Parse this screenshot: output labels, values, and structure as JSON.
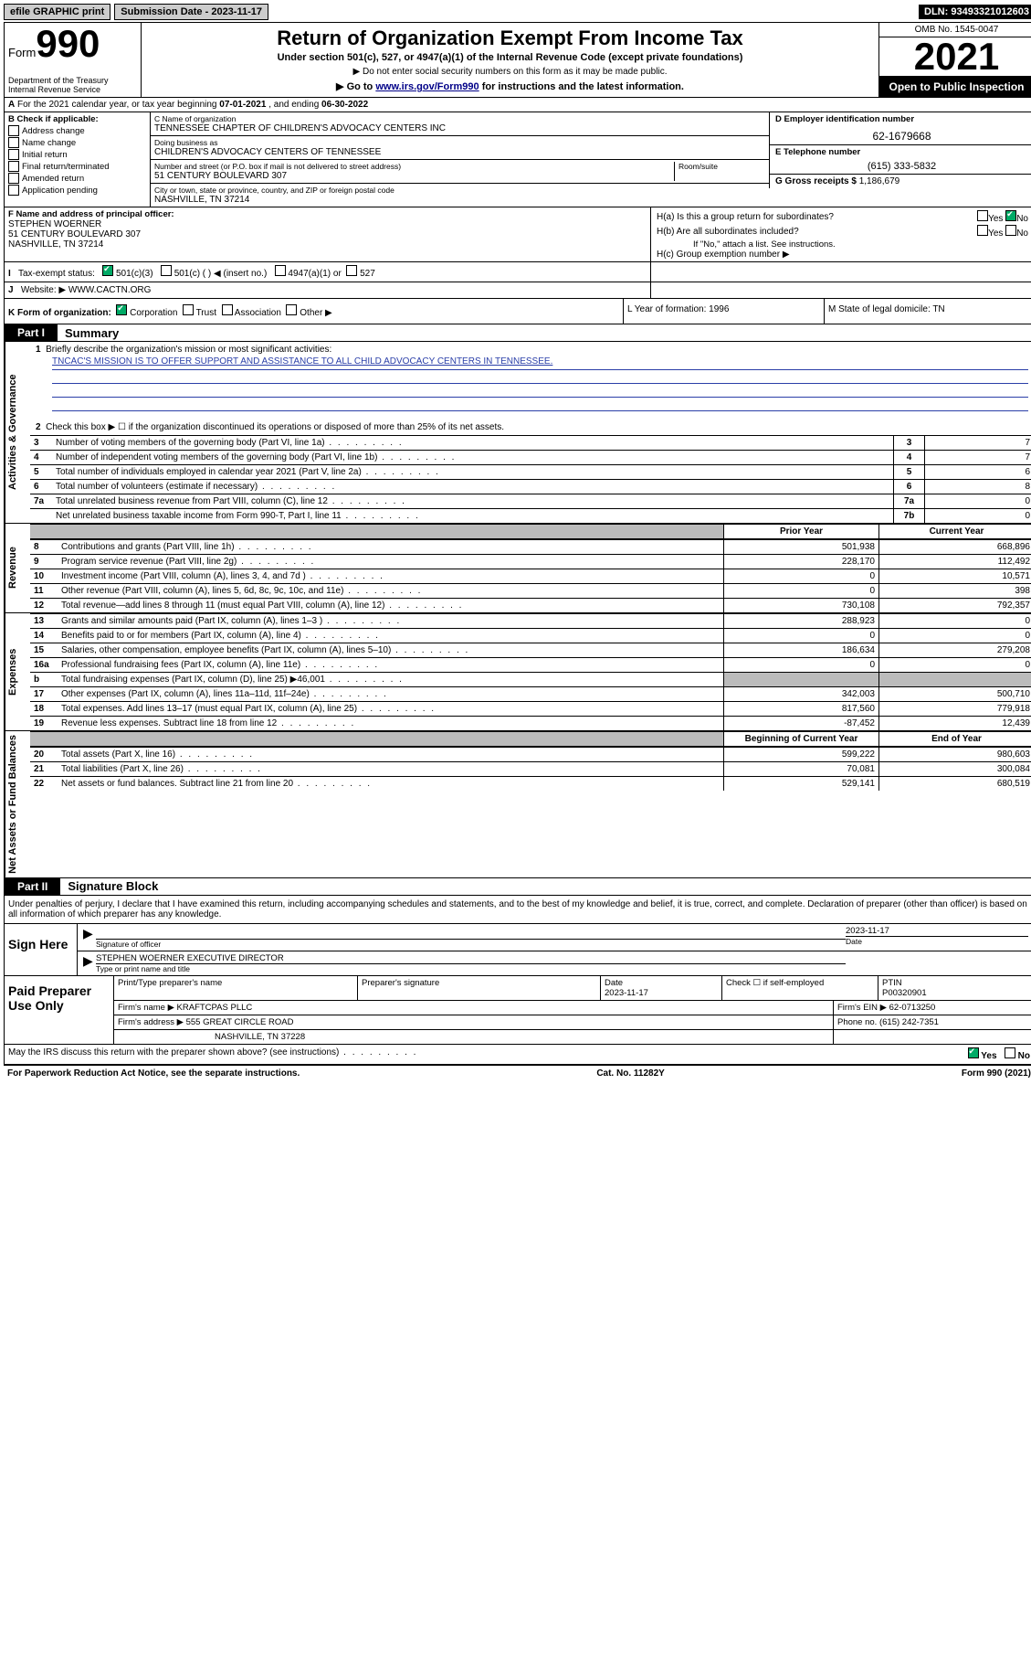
{
  "topbar": {
    "efile": "efile GRAPHIC print",
    "subdate_label": "Submission Date - ",
    "subdate": "2023-11-17",
    "dln": "DLN: 93493321012603"
  },
  "header": {
    "form_word": "Form",
    "form_num": "990",
    "title": "Return of Organization Exempt From Income Tax",
    "sub1": "Under section 501(c), 527, or 4947(a)(1) of the Internal Revenue Code (except private foundations)",
    "sub2": "Do not enter social security numbers on this form as it may be made public.",
    "sub3_pre": "Go to ",
    "sub3_link": "www.irs.gov/Form990",
    "sub3_post": " for instructions and the latest information.",
    "dept": "Department of the Treasury\nInternal Revenue Service",
    "omb": "OMB No. 1545-0047",
    "year": "2021",
    "open": "Open to Public Inspection"
  },
  "rowA": {
    "label": "A",
    "text_pre": "For the 2021 calendar year, or tax year beginning ",
    "begin": "07-01-2021",
    "mid": " , and ending ",
    "end": "06-30-2022"
  },
  "colB": {
    "header": "B Check if applicable:",
    "opts": [
      "Address change",
      "Name change",
      "Initial return",
      "Final return/terminated",
      "Amended return",
      "Application pending"
    ]
  },
  "colC": {
    "name_lab": "C Name of organization",
    "name": "TENNESSEE CHAPTER OF CHILDREN'S ADVOCACY CENTERS INC",
    "dba_lab": "Doing business as",
    "dba": "CHILDREN'S ADVOCACY CENTERS OF TENNESSEE",
    "street_lab": "Number and street (or P.O. box if mail is not delivered to street address)",
    "street": "51 CENTURY BOULEVARD 307",
    "room_lab": "Room/suite",
    "city_lab": "City or town, state or province, country, and ZIP or foreign postal code",
    "city": "NASHVILLE, TN  37214"
  },
  "colD": {
    "d_lab": "D Employer identification number",
    "ein": "62-1679668",
    "e_lab": "E Telephone number",
    "phone": "(615) 333-5832",
    "g_lab": "G Gross receipts $ ",
    "gross": "1,186,679"
  },
  "rowF": {
    "lab": "F Name and address of principal officer:",
    "name": "STEPHEN WOERNER",
    "addr1": "51 CENTURY BOULEVARD 307",
    "addr2": "NASHVILLE, TN  37214"
  },
  "rowH": {
    "ha": "H(a)  Is this a group return for subordinates?",
    "hb": "H(b)  Are all subordinates included?",
    "hb_note": "If \"No,\" attach a list. See instructions.",
    "hc": "H(c)  Group exemption number ▶",
    "yes": "Yes",
    "no": "No",
    "ha_answer": "No"
  },
  "rowI": {
    "lab": "I",
    "text": "Tax-exempt status:",
    "opt1": "501(c)(3)",
    "opt2": "501(c) (   ) ◀ (insert no.)",
    "opt3": "4947(a)(1) or",
    "opt4": "527"
  },
  "rowJ": {
    "lab": "J",
    "text": "Website: ▶ ",
    "url": "WWW.CACTN.ORG"
  },
  "rowK": {
    "text": "K Form of organization:",
    "opts": [
      "Corporation",
      "Trust",
      "Association",
      "Other ▶"
    ],
    "L": "L Year of formation: 1996",
    "M": "M State of legal domicile: TN"
  },
  "part1": {
    "tab": "Part I",
    "title": "Summary",
    "q1_lab": "1",
    "q1": "Briefly describe the organization's mission or most significant activities:",
    "mission": "TNCAC'S MISSION IS TO OFFER SUPPORT AND ASSISTANCE TO ALL CHILD ADVOCACY CENTERS IN TENNESSEE.",
    "q2_lab": "2",
    "q2": "Check this box ▶ ☐  if the organization discontinued its operations or disposed of more than 25% of its net assets.",
    "rows": [
      {
        "n": "3",
        "t": "Number of voting members of the governing body (Part VI, line 1a)",
        "box": "3",
        "v": "7"
      },
      {
        "n": "4",
        "t": "Number of independent voting members of the governing body (Part VI, line 1b)",
        "box": "4",
        "v": "7"
      },
      {
        "n": "5",
        "t": "Total number of individuals employed in calendar year 2021 (Part V, line 2a)",
        "box": "5",
        "v": "6"
      },
      {
        "n": "6",
        "t": "Total number of volunteers (estimate if necessary)",
        "box": "6",
        "v": "8"
      },
      {
        "n": "7a",
        "t": "Total unrelated business revenue from Part VIII, column (C), line 12",
        "box": "7a",
        "v": "0"
      },
      {
        "n": "",
        "t": "Net unrelated business taxable income from Form 990-T, Part I, line 11",
        "box": "7b",
        "v": "0"
      }
    ],
    "section_labels": {
      "gov": "Activities & Governance",
      "rev": "Revenue",
      "exp": "Expenses",
      "net": "Net Assets or Fund Balances"
    }
  },
  "fin_head": {
    "prior": "Prior Year",
    "current": "Current Year",
    "boc": "Beginning of Current Year",
    "eoy": "End of Year"
  },
  "revenue": [
    {
      "n": "8",
      "t": "Contributions and grants (Part VIII, line 1h)",
      "p": "501,938",
      "c": "668,896"
    },
    {
      "n": "9",
      "t": "Program service revenue (Part VIII, line 2g)",
      "p": "228,170",
      "c": "112,492"
    },
    {
      "n": "10",
      "t": "Investment income (Part VIII, column (A), lines 3, 4, and 7d )",
      "p": "0",
      "c": "10,571"
    },
    {
      "n": "11",
      "t": "Other revenue (Part VIII, column (A), lines 5, 6d, 8c, 9c, 10c, and 11e)",
      "p": "0",
      "c": "398"
    },
    {
      "n": "12",
      "t": "Total revenue—add lines 8 through 11 (must equal Part VIII, column (A), line 12)",
      "p": "730,108",
      "c": "792,357"
    }
  ],
  "expenses": [
    {
      "n": "13",
      "t": "Grants and similar amounts paid (Part IX, column (A), lines 1–3 )",
      "p": "288,923",
      "c": "0"
    },
    {
      "n": "14",
      "t": "Benefits paid to or for members (Part IX, column (A), line 4)",
      "p": "0",
      "c": "0"
    },
    {
      "n": "15",
      "t": "Salaries, other compensation, employee benefits (Part IX, column (A), lines 5–10)",
      "p": "186,634",
      "c": "279,208"
    },
    {
      "n": "16a",
      "t": "Professional fundraising fees (Part IX, column (A), line 11e)",
      "p": "0",
      "c": "0"
    },
    {
      "n": "b",
      "t": "Total fundraising expenses (Part IX, column (D), line 25) ▶46,001",
      "p": "",
      "c": "",
      "grey": true
    },
    {
      "n": "17",
      "t": "Other expenses (Part IX, column (A), lines 11a–11d, 11f–24e)",
      "p": "342,003",
      "c": "500,710"
    },
    {
      "n": "18",
      "t": "Total expenses. Add lines 13–17 (must equal Part IX, column (A), line 25)",
      "p": "817,560",
      "c": "779,918"
    },
    {
      "n": "19",
      "t": "Revenue less expenses. Subtract line 18 from line 12",
      "p": "-87,452",
      "c": "12,439"
    }
  ],
  "net": [
    {
      "n": "20",
      "t": "Total assets (Part X, line 16)",
      "p": "599,222",
      "c": "980,603"
    },
    {
      "n": "21",
      "t": "Total liabilities (Part X, line 26)",
      "p": "70,081",
      "c": "300,084"
    },
    {
      "n": "22",
      "t": "Net assets or fund balances. Subtract line 21 from line 20",
      "p": "529,141",
      "c": "680,519"
    }
  ],
  "part2": {
    "tab": "Part II",
    "title": "Signature Block",
    "decl": "Under penalties of perjury, I declare that I have examined this return, including accompanying schedules and statements, and to the best of my knowledge and belief, it is true, correct, and complete. Declaration of preparer (other than officer) is based on all information of which preparer has any knowledge.",
    "sign_here": "Sign Here",
    "sig_officer": "Signature of officer",
    "sig_date_lab": "Date",
    "sig_date": "2023-11-17",
    "name_title_lab": "Type or print name and title",
    "name_title": "STEPHEN WOERNER  EXECUTIVE DIRECTOR",
    "paid": "Paid Preparer Use Only",
    "prep_name_lab": "Print/Type preparer's name",
    "prep_sig_lab": "Preparer's signature",
    "prep_date_lab": "Date",
    "prep_date": "2023-11-17",
    "self_lab": "Check ☐ if self-employed",
    "ptin_lab": "PTIN",
    "ptin": "P00320901",
    "firm_name_lab": "Firm's name    ▶ ",
    "firm_name": "KRAFTCPAS PLLC",
    "firm_ein_lab": "Firm's EIN ▶ ",
    "firm_ein": "62-0713250",
    "firm_addr_lab": "Firm's address ▶ ",
    "firm_addr1": "555 GREAT CIRCLE ROAD",
    "firm_addr2": "NASHVILLE, TN  37228",
    "phone_lab": "Phone no. ",
    "phone": "(615) 242-7351",
    "discuss": "May the IRS discuss this return with the preparer shown above? (see instructions)",
    "discuss_ans": "Yes"
  },
  "footer": {
    "left": "For Paperwork Reduction Act Notice, see the separate instructions.",
    "mid": "Cat. No. 11282Y",
    "right": "Form 990 (2021)"
  }
}
